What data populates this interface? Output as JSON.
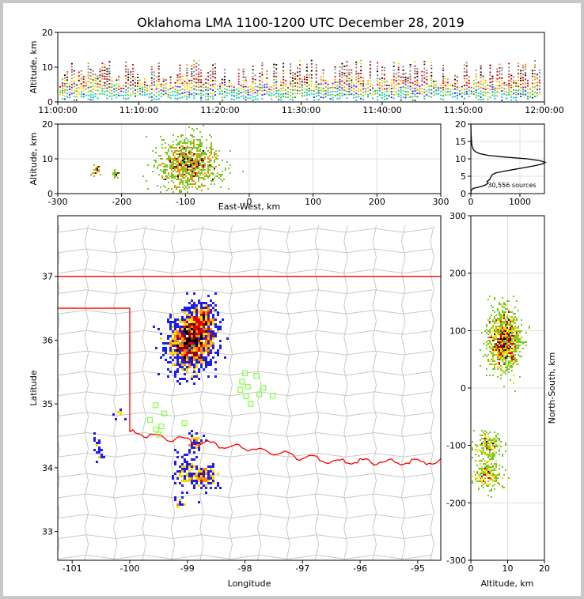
{
  "title": "Oklahoma LMA 1100-1200 UTC December 28, 2019",
  "colors": {
    "sources": [
      "#00c8c8",
      "#1eaa1e",
      "#1e1ee6",
      "#78c81e",
      "#ffd700",
      "#ff8c00",
      "#e60000",
      "#8b0000",
      "#000000",
      "#7f7f7f"
    ],
    "state_border": "#ff0000",
    "county_lines": "#c8c8c8",
    "stations": "#80ff40"
  },
  "chart_data": [
    {
      "type": "heatmap",
      "name": "time-height",
      "ylabel": "Altitude, km",
      "x_ticks": [
        "11:00:00",
        "11:10:00",
        "11:20:00",
        "11:30:00",
        "11:40:00",
        "11:50:00",
        "12:00:00"
      ],
      "xlim_minutes": [
        0,
        60
      ],
      "ylim": [
        0,
        20
      ],
      "y_ticks": [
        0,
        10,
        20
      ]
    },
    {
      "type": "heatmap",
      "name": "east-west-altitude",
      "xlabel": "East-West, km",
      "ylabel": "Altitude, km",
      "xlim": [
        -300,
        300
      ],
      "ylim": [
        0,
        20
      ],
      "x_ticks": [
        -300,
        -200,
        -100,
        0,
        100,
        200,
        300
      ],
      "y_ticks": [
        0,
        10,
        20
      ],
      "clusters": [
        {
          "x": -95,
          "alt": 8.5,
          "sx": 24,
          "sa": 3.5,
          "n": 900
        },
        {
          "x": -240,
          "alt": 6.5,
          "sx": 4,
          "sa": 0.6,
          "n": 30
        },
        {
          "x": -210,
          "alt": 5.5,
          "sx": 3,
          "sa": 0.6,
          "n": 20
        }
      ]
    },
    {
      "type": "line",
      "name": "altitude-histogram",
      "annotation": "30,556 sources",
      "xlim": [
        0,
        1500
      ],
      "ylim": [
        0,
        20
      ],
      "x_ticks": [
        0,
        1000
      ],
      "y_ticks": [
        0,
        5,
        10,
        15,
        20
      ],
      "points": [
        [
          0,
          0
        ],
        [
          0,
          0.5
        ],
        [
          10,
          1
        ],
        [
          50,
          1.5
        ],
        [
          200,
          2
        ],
        [
          300,
          2.5
        ],
        [
          350,
          3
        ],
        [
          330,
          3.5
        ],
        [
          380,
          4
        ],
        [
          420,
          5
        ],
        [
          440,
          5.5
        ],
        [
          520,
          6
        ],
        [
          700,
          6.5
        ],
        [
          900,
          7
        ],
        [
          1100,
          7.5
        ],
        [
          1300,
          8
        ],
        [
          1450,
          8.5
        ],
        [
          1520,
          9
        ],
        [
          1400,
          9.5
        ],
        [
          1150,
          10
        ],
        [
          700,
          10.5
        ],
        [
          350,
          11
        ],
        [
          180,
          11.5
        ],
        [
          100,
          12
        ],
        [
          60,
          12.5
        ],
        [
          40,
          13
        ],
        [
          30,
          13.5
        ],
        [
          20,
          14
        ],
        [
          15,
          15
        ],
        [
          10,
          16
        ],
        [
          5,
          17
        ],
        [
          0,
          20
        ]
      ]
    },
    {
      "type": "heatmap",
      "name": "plan-view",
      "xlabel": "Longitude",
      "ylabel": "Latitude",
      "xlim": [
        -101.25,
        -94.6
      ],
      "ylim": [
        32.55,
        37.95
      ],
      "x_ticks": [
        -101,
        -100,
        -99,
        -98,
        -97,
        -96,
        -95
      ],
      "y_ticks": [
        33,
        34,
        35,
        36,
        37
      ],
      "clusters": [
        {
          "lon": -98.95,
          "lat": 35.95,
          "slon": 0.2,
          "slat": 0.22,
          "n": 900
        },
        {
          "lon": -98.75,
          "lat": 36.25,
          "slon": 0.12,
          "slat": 0.18,
          "n": 350
        },
        {
          "lon": -98.7,
          "lat": 33.85,
          "slon": 0.12,
          "slat": 0.1,
          "n": 120
        },
        {
          "lon": -99.05,
          "lat": 33.95,
          "slon": 0.1,
          "slat": 0.15,
          "n": 80
        },
        {
          "lon": -98.85,
          "lat": 34.4,
          "slon": 0.08,
          "slat": 0.08,
          "n": 40
        },
        {
          "lon": -100.55,
          "lat": 34.4,
          "slon": 0.04,
          "slat": 0.15,
          "n": 20
        },
        {
          "lon": -99.15,
          "lat": 33.45,
          "slon": 0.05,
          "slat": 0.05,
          "n": 15
        },
        {
          "lon": -100.2,
          "lat": 34.85,
          "slon": 0.04,
          "slat": 0.04,
          "n": 10
        }
      ],
      "stations": [
        [
          -99.55,
          34.98
        ],
        [
          -99.4,
          34.85
        ],
        [
          -99.65,
          34.75
        ],
        [
          -99.45,
          34.65
        ],
        [
          -99.55,
          34.6
        ],
        [
          -99.5,
          34.52
        ],
        [
          -99.05,
          34.7
        ],
        [
          -98.0,
          35.48
        ],
        [
          -98.05,
          35.35
        ],
        [
          -98.08,
          35.22
        ],
        [
          -97.95,
          35.27
        ],
        [
          -97.8,
          35.44
        ],
        [
          -97.68,
          35.25
        ],
        [
          -97.75,
          35.15
        ],
        [
          -97.52,
          35.13
        ],
        [
          -97.9,
          35.0
        ],
        [
          -97.98,
          35.12
        ]
      ]
    },
    {
      "type": "heatmap",
      "name": "altitude-north-south",
      "xlabel": "Altitude, km",
      "ylabel": "North-South, km",
      "xlim": [
        0,
        20
      ],
      "ylim": [
        -300,
        300
      ],
      "x_ticks": [
        0,
        10,
        20
      ],
      "y_ticks": [
        -300,
        -200,
        -100,
        0,
        100,
        200,
        300
      ],
      "clusters": [
        {
          "alt": 9.0,
          "y": 80,
          "sa": 2.2,
          "sy": 28,
          "n": 1000
        },
        {
          "alt": 4.5,
          "y": -100,
          "sa": 1.8,
          "sy": 12,
          "n": 180
        },
        {
          "alt": 4.5,
          "y": -150,
          "sa": 2.0,
          "sy": 14,
          "n": 220
        }
      ]
    }
  ]
}
